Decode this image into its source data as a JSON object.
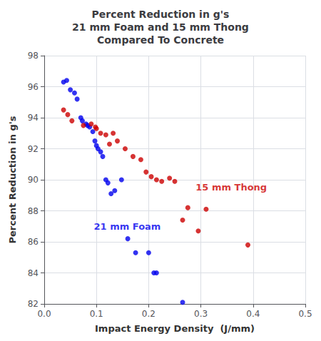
{
  "chart_data": {
    "type": "scatter",
    "title": "Percent Reduction in g's\n21 mm Foam and 15 mm Thong\nCompared To Concrete",
    "xlabel": "Impact Energy Density  (J/mm)",
    "ylabel": "Percent Reduction in g's",
    "xlim": [
      0.0,
      0.5
    ],
    "ylim": [
      82,
      98
    ],
    "xticks": [
      {
        "value": 0.0,
        "label": "0.0"
      },
      0.1,
      0.2,
      0.3,
      0.4,
      0.5
    ],
    "yticks": [
      82,
      84,
      86,
      88,
      90,
      92,
      94,
      96,
      98
    ],
    "grid": true,
    "series": [
      {
        "color": "#0000EE",
        "x": [
          0.037,
          0.043,
          0.05,
          0.058,
          0.063,
          0.07,
          0.073,
          0.08,
          0.083,
          0.087,
          0.093,
          0.097,
          0.1,
          0.103,
          0.108,
          0.112,
          0.118,
          0.122,
          0.128,
          0.135,
          0.148,
          0.16,
          0.175,
          0.2,
          0.21,
          0.215,
          0.265
        ],
        "values": [
          96.3,
          96.4,
          95.8,
          95.6,
          95.2,
          94.0,
          93.8,
          93.6,
          93.5,
          93.4,
          93.1,
          92.5,
          92.2,
          92.0,
          91.8,
          91.5,
          90.0,
          89.8,
          89.1,
          89.3,
          90.0,
          86.2,
          85.3,
          85.3,
          84.0,
          84.0,
          82.1
        ]
      },
      {
        "color": "#CC0000",
        "x": [
          0.037,
          0.045,
          0.053,
          0.075,
          0.09,
          0.098,
          0.1,
          0.108,
          0.118,
          0.125,
          0.132,
          0.14,
          0.155,
          0.17,
          0.185,
          0.195,
          0.205,
          0.215,
          0.225,
          0.24,
          0.25,
          0.265,
          0.275,
          0.295,
          0.31,
          0.39
        ],
        "values": [
          94.5,
          94.2,
          93.8,
          93.5,
          93.6,
          93.4,
          93.3,
          93.0,
          92.9,
          92.3,
          93.0,
          92.5,
          92.0,
          91.5,
          91.3,
          90.5,
          90.2,
          90.0,
          89.9,
          90.1,
          89.9,
          87.4,
          88.2,
          86.7,
          88.1,
          85.8
        ]
      }
    ],
    "annotations": [
      {
        "text": "21 mm Foam",
        "x": 0.095,
        "y": 87.0,
        "color": "#0000EE"
      },
      {
        "text": "15 mm Thong",
        "x": 0.29,
        "y": 89.5,
        "color": "#CC0000"
      }
    ]
  }
}
